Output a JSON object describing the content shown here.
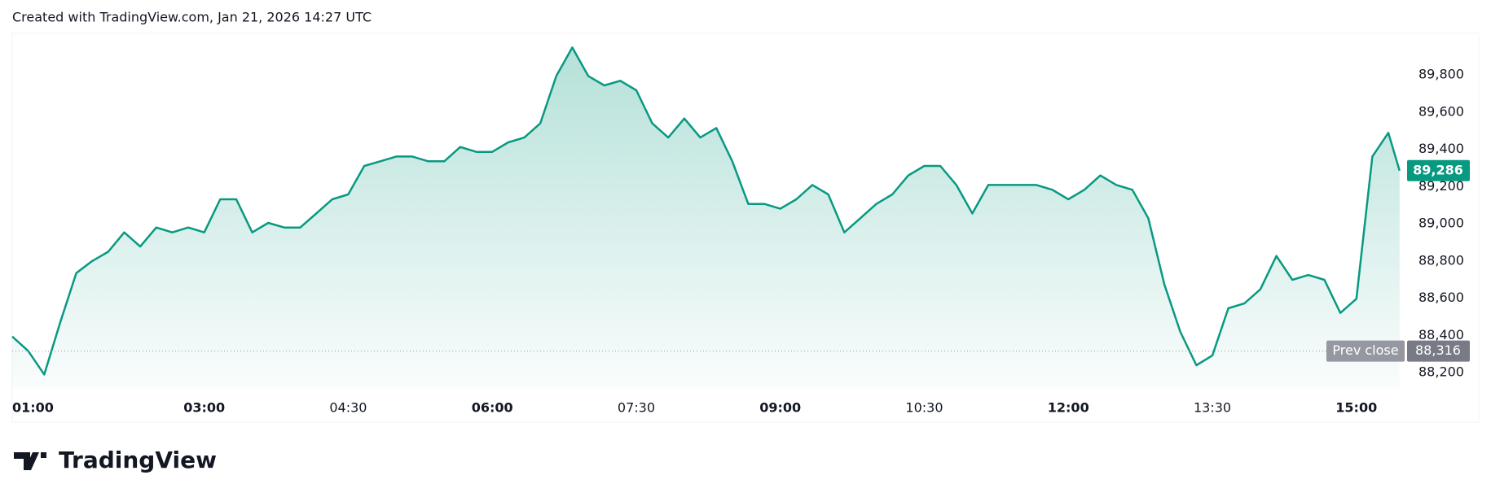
{
  "header": {
    "text": "Created with TradingView.com, Jan 21, 2026 14:27 UTC"
  },
  "logo": {
    "text": "TradingView"
  },
  "chart_data": {
    "type": "area",
    "color": "#089981",
    "x": [
      "01:00",
      "01:10",
      "01:20",
      "01:30",
      "01:40",
      "01:50",
      "02:00",
      "02:10",
      "02:20",
      "02:30",
      "02:40",
      "02:50",
      "03:00",
      "03:10",
      "03:20",
      "03:30",
      "03:40",
      "03:50",
      "04:00",
      "04:10",
      "04:20",
      "04:30",
      "04:40",
      "04:50",
      "05:00",
      "05:10",
      "05:20",
      "05:30",
      "05:40",
      "05:50",
      "06:00",
      "06:10",
      "06:20",
      "06:30",
      "06:40",
      "06:50",
      "07:00",
      "07:10",
      "07:20",
      "07:30",
      "07:40",
      "07:50",
      "08:00",
      "08:10",
      "08:20",
      "08:30",
      "08:40",
      "08:50",
      "09:00",
      "09:10",
      "09:20",
      "09:30",
      "09:40",
      "09:50",
      "10:00",
      "10:10",
      "10:20",
      "10:30",
      "10:40",
      "10:50",
      "11:00",
      "11:10",
      "11:20",
      "11:30",
      "11:40",
      "11:50",
      "12:00",
      "12:10",
      "12:20",
      "12:30",
      "12:40",
      "12:50",
      "13:00",
      "13:10",
      "13:20",
      "13:30",
      "13:40",
      "13:50",
      "14:00",
      "14:10",
      "14:20",
      "14:30",
      "14:40",
      "14:50",
      "15:00",
      "15:10",
      "15:20",
      "15:27"
    ],
    "values": [
      88394,
      88317,
      88190,
      88470,
      88735,
      88800,
      88850,
      88954,
      88878,
      88980,
      88954,
      88980,
      88954,
      89132,
      89132,
      88954,
      89005,
      88980,
      88980,
      89056,
      89132,
      89158,
      89311,
      89336,
      89362,
      89362,
      89336,
      89336,
      89413,
      89387,
      89387,
      89438,
      89464,
      89540,
      89795,
      89948,
      89795,
      89744,
      89769,
      89718,
      89540,
      89464,
      89566,
      89464,
      89515,
      89336,
      89107,
      89107,
      89081,
      89132,
      89209,
      89158,
      88954,
      89030,
      89107,
      89158,
      89260,
      89311,
      89311,
      89209,
      89056,
      89209,
      89209,
      89209,
      89209,
      89183,
      89132,
      89183,
      89260,
      89209,
      89183,
      89030,
      88674,
      88419,
      88240,
      88292,
      88546,
      88572,
      88648,
      88827,
      88699,
      88725,
      88699,
      88521,
      88597,
      89362,
      89489,
      89286
    ],
    "xticks": [
      "01:00",
      "03:00",
      "04:30",
      "06:00",
      "07:30",
      "09:00",
      "10:30",
      "12:00",
      "13:30",
      "15:00"
    ],
    "ylim": [
      88113,
      90024
    ],
    "yticks": [
      {
        "value": 88200,
        "label": "88,200"
      },
      {
        "value": 88400,
        "label": "88,400"
      },
      {
        "value": 88600,
        "label": "88,600"
      },
      {
        "value": 88800,
        "label": "88,800"
      },
      {
        "value": 89000,
        "label": "89,000"
      },
      {
        "value": 89200,
        "label": "89,200"
      },
      {
        "value": 89400,
        "label": "89,400"
      },
      {
        "value": 89600,
        "label": "89,600"
      },
      {
        "value": 89800,
        "label": "89,800"
      }
    ],
    "last_price": {
      "value": 89286,
      "label": "89,286"
    },
    "prev_close": {
      "name": "Prev close",
      "value": 88316,
      "label": "88,316"
    }
  }
}
